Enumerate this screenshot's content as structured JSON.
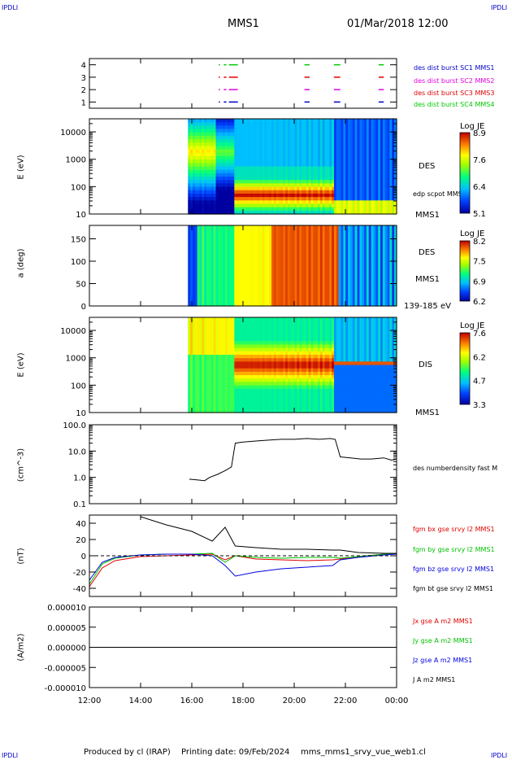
{
  "corners": {
    "top_left": "IPDLI",
    "top_right": "IPDLI",
    "bottom_left": "IPDLI",
    "bottom_right": "IPDLI"
  },
  "header": {
    "spacecraft": "MMS1",
    "datetime": "01/Mar/2018 12:00"
  },
  "footer": {
    "produced_by": "Produced by cl (IRAP)",
    "printing_date": "Printing date: 09/Feb/2024",
    "filename": "mms_mms1_srvy_vue_web1.cl"
  },
  "colors": {
    "sc1": "#0000c8",
    "sc2": "#e000e0",
    "sc3": "#e00000",
    "sc4": "#00c800",
    "bx": "#e00000",
    "by": "#00c000",
    "bz": "#0000e0",
    "bt": "#000000"
  },
  "chart_data": [
    {
      "type": "scatter",
      "name": "burst-availability",
      "x_unit": "hour",
      "yticks": [
        "1",
        "2",
        "3",
        "4"
      ],
      "ylim": [
        0.5,
        4.5
      ],
      "legend": [
        "des dist burst SC1 MMS1",
        "des dist burst SC2 MMS2",
        "des dist burst SC3 MMS3",
        "des dist burst SC4 MMS4"
      ],
      "intervals": [
        [
          17.05,
          17.1
        ],
        [
          17.25,
          17.35
        ],
        [
          17.45,
          17.8
        ],
        [
          20.4,
          20.6
        ],
        [
          21.55,
          21.8
        ],
        [
          23.3,
          23.5
        ]
      ]
    },
    {
      "type": "heatmap",
      "name": "des-energy",
      "ylabel": "E (eV)",
      "yscale": "log",
      "yticks": [
        "10",
        "100",
        "1000",
        "10000"
      ],
      "ylim": [
        10,
        30000
      ],
      "right_labels": [
        "DES",
        "edp scpot MMS1",
        "MMS1"
      ],
      "colorbar": {
        "title": "Log JE",
        "ticks": [
          "8.9",
          "7.6",
          "6.4",
          "5.1"
        ],
        "range": [
          5.1,
          8.9
        ]
      }
    },
    {
      "type": "heatmap",
      "name": "des-pitch",
      "ylabel": "a (deg)",
      "yticks": [
        "0",
        "50",
        "100",
        "150"
      ],
      "ylim": [
        0,
        180
      ],
      "right_labels": [
        "DES",
        "MMS1",
        "139-185 eV"
      ],
      "colorbar": {
        "title": "Log JE",
        "ticks": [
          "8.2",
          "7.5",
          "6.9",
          "6.2"
        ],
        "range": [
          6.2,
          8.2
        ]
      }
    },
    {
      "type": "heatmap",
      "name": "dis-energy",
      "ylabel": "E (eV)",
      "yscale": "log",
      "yticks": [
        "10",
        "100",
        "1000",
        "10000"
      ],
      "ylim": [
        10,
        30000
      ],
      "right_labels": [
        "DIS",
        "MMS1"
      ],
      "colorbar": {
        "title": "Log JE",
        "ticks": [
          "7.6",
          "6.2",
          "4.7",
          "3.3"
        ],
        "range": [
          3.3,
          7.6
        ]
      }
    },
    {
      "type": "line",
      "name": "density",
      "ylabel": "(cm^-3)",
      "yscale": "log",
      "yticks": [
        "0.1",
        "1.0",
        "10.0",
        "100.0"
      ],
      "ylim": [
        0.1,
        100
      ],
      "legend": [
        "des numberdensity fast M"
      ],
      "x": [
        15.9,
        16.2,
        16.5,
        16.7,
        17.0,
        17.3,
        17.55,
        17.7,
        18.0,
        18.5,
        19.0,
        19.5,
        20.0,
        20.5,
        21.0,
        21.4,
        21.6,
        21.8,
        22.2,
        22.6,
        23.0,
        23.5,
        23.8,
        24.0
      ],
      "values": [
        0.85,
        0.8,
        0.75,
        1.0,
        1.3,
        1.8,
        2.5,
        20.0,
        22.0,
        24.0,
        26.0,
        28.0,
        28.0,
        30.0,
        28.0,
        30.0,
        28.0,
        6.0,
        5.5,
        5.0,
        5.0,
        5.5,
        4.5,
        5.0
      ]
    },
    {
      "type": "line",
      "name": "magnetic-field",
      "ylabel": "(nT)",
      "yticks": [
        "-40",
        "-20",
        "0",
        "20",
        "40"
      ],
      "ylim": [
        -50,
        50
      ],
      "legend": [
        "fgm bx gse srvy l2 MMS1",
        "fgm by gse srvy l2 MMS1",
        "fgm bz gse srvy l2 MMS1",
        "fgm bt gse srvy l2 MMS1"
      ],
      "x": [
        12.0,
        12.5,
        13.0,
        14.0,
        15.0,
        16.0,
        16.8,
        17.3,
        17.7,
        18.5,
        19.5,
        20.5,
        21.5,
        21.8,
        22.5,
        23.5,
        24.0
      ],
      "series": [
        {
          "values": [
            -38,
            -15,
            -6,
            -1,
            0,
            1,
            2,
            -5,
            0,
            -4,
            -5,
            -6,
            -5,
            -4,
            -1,
            2,
            3
          ]
        },
        {
          "values": [
            -35,
            -10,
            -3,
            1,
            2,
            2,
            3,
            -8,
            0,
            -2,
            -3,
            -2,
            -2,
            -3,
            -1,
            2,
            3
          ]
        },
        {
          "values": [
            -30,
            -8,
            -2,
            1,
            2,
            2,
            0,
            -12,
            -25,
            -20,
            -16,
            -14,
            -12,
            -5,
            -2,
            1,
            2
          ]
        },
        {
          "values": [
            null,
            null,
            null,
            48,
            38,
            30,
            18,
            35,
            12,
            10,
            8,
            8,
            7,
            7,
            4,
            3,
            3
          ]
        }
      ]
    },
    {
      "type": "line",
      "name": "current-density",
      "ylabel": "(A/m2)",
      "yticks": [
        "-0.000010",
        "-0.000005",
        "0.000000",
        "0.000005",
        "0.000010"
      ],
      "ylim": [
        -1e-05,
        1e-05
      ],
      "legend": [
        "Jx gse A m2 MMS1",
        "Jy gse A m2 MMS1",
        "Jz gse A m2 MMS1",
        "J A m2 MMS1"
      ],
      "x": [
        12.0,
        16.0,
        17.5,
        18.0,
        20.0,
        21.5,
        21.7,
        22.0,
        24.0
      ],
      "series": [
        {
          "values": [
            0,
            0,
            0,
            0,
            0,
            0,
            0,
            0,
            0
          ]
        },
        {
          "values": [
            0,
            0,
            0,
            0,
            0,
            0,
            0,
            0,
            0
          ]
        },
        {
          "values": [
            0,
            0,
            0,
            0,
            0,
            0,
            0,
            0,
            0
          ]
        },
        {
          "values": [
            0,
            0,
            0,
            0,
            0,
            0,
            0,
            0,
            0
          ]
        }
      ]
    }
  ],
  "xaxis": {
    "ticks": [
      "12:00",
      "14:00",
      "16:00",
      "18:00",
      "20:00",
      "22:00",
      "00:00"
    ],
    "range": [
      12,
      24
    ]
  }
}
